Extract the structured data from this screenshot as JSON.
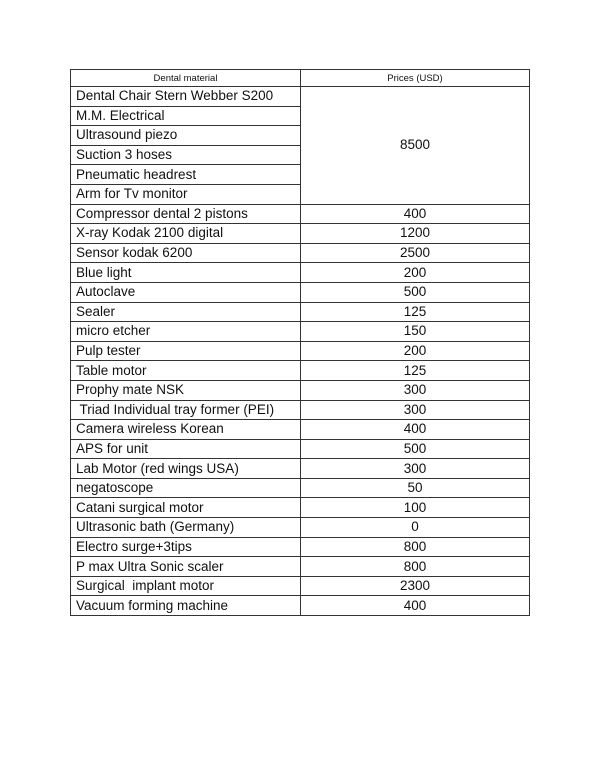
{
  "table": {
    "headers": [
      "Dental material",
      "Prices (USD)"
    ],
    "group": {
      "items": [
        "Dental Chair Stern Webber S200",
        "M.M. Electrical",
        "Ultrasound piezo",
        "Suction 3 hoses",
        "Pneumatic headrest",
        "Arm for Tv monitor"
      ],
      "price": "8500"
    },
    "rows": [
      {
        "name": "Compressor dental 2 pistons",
        "price": "400"
      },
      {
        "name": "X-ray Kodak 2100 digital",
        "price": "1200"
      },
      {
        "name": "Sensor kodak 6200",
        "price": "2500"
      },
      {
        "name": "Blue light",
        "price": "200"
      },
      {
        "name": "Autoclave",
        "price": "500"
      },
      {
        "name": "Sealer",
        "price": "125"
      },
      {
        "name": "micro etcher",
        "price": "150"
      },
      {
        "name": "Pulp tester",
        "price": "200"
      },
      {
        "name": "Table motor",
        "price": "125"
      },
      {
        "name": "Prophy mate NSK",
        "price": "300"
      },
      {
        "name": " Triad Individual tray former (PEI)",
        "price": "300"
      },
      {
        "name": "Camera wireless Korean",
        "price": "400"
      },
      {
        "name": "APS for unit",
        "price": "500"
      },
      {
        "name": "Lab Motor (red wings USA)",
        "price": "300"
      },
      {
        "name": "negatoscope",
        "price": "50"
      },
      {
        "name": "Catani surgical motor",
        "price": "100"
      },
      {
        "name": "Ultrasonic bath (Germany)",
        "price": "0"
      },
      {
        "name": "Electro surge+3tips",
        "price": "800"
      },
      {
        "name": "P max Ultra Sonic scaler",
        "price": "800"
      },
      {
        "name": "Surgical  implant motor",
        "price": "2300"
      },
      {
        "name": "Vacuum forming machine",
        "price": "400"
      }
    ]
  }
}
